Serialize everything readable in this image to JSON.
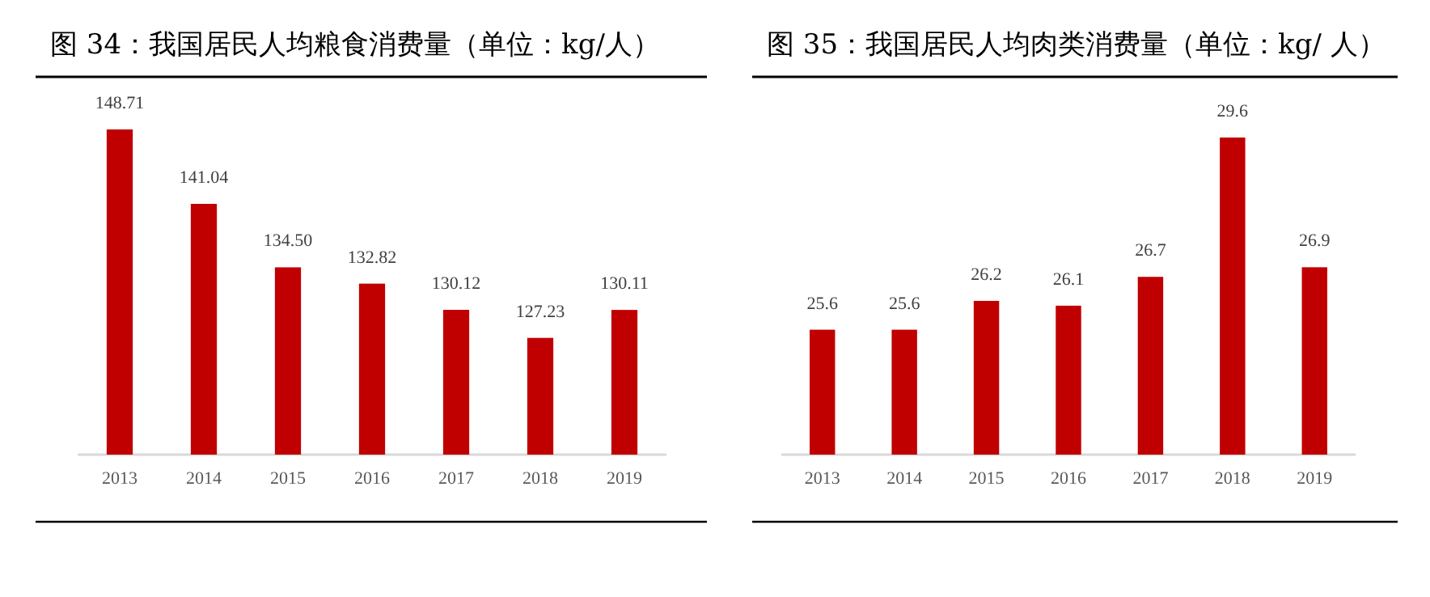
{
  "chart_data": [
    {
      "type": "bar",
      "title": "图 34：我国居民人均粮食消费量（单位：kg/人）",
      "categories": [
        "2013",
        "2014",
        "2015",
        "2016",
        "2017",
        "2018",
        "2019"
      ],
      "values": [
        148.71,
        141.04,
        134.5,
        132.82,
        130.12,
        127.23,
        130.11
      ],
      "value_labels": [
        "148.71",
        "141.04",
        "134.50",
        "132.82",
        "130.12",
        "127.23",
        "130.11"
      ],
      "color": "#c00000",
      "ylim": [
        115.2,
        148.71
      ],
      "tick_labels": "x"
    },
    {
      "type": "bar",
      "title": "图 35：我国居民人均肉类消费量（单位：kg/ 人）",
      "categories": [
        "2013",
        "2014",
        "2015",
        "2016",
        "2017",
        "2018",
        "2019"
      ],
      "values": [
        25.6,
        25.6,
        26.2,
        26.1,
        26.7,
        29.6,
        26.9
      ],
      "data_labels": true,
      "color": "#c00000",
      "ylim": [
        23,
        29.6
      ],
      "tick_labels": "x"
    }
  ]
}
